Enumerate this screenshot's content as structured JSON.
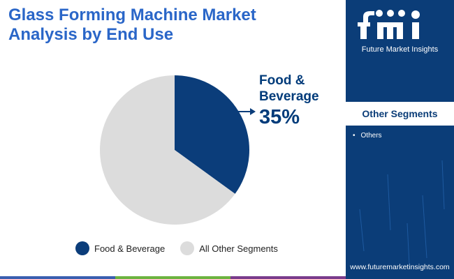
{
  "header": {
    "title_line1": "Glass Forming Machine Market",
    "title_line2": "Analysis by End Use"
  },
  "chart_data": {
    "type": "pie",
    "categories": [
      "Food & Beverage",
      "All Other Segments"
    ],
    "values": [
      35,
      65
    ],
    "colors": [
      "#0b3d7a",
      "#dcdcdc"
    ],
    "callout": {
      "label_line1": "Food &",
      "label_line2": "Beverage",
      "value": "35%"
    },
    "legend_placement": "bottom"
  },
  "legend": {
    "items": [
      {
        "label": "Food & Beverage",
        "color": "#0b3d7a"
      },
      {
        "label": "All Other Segments",
        "color": "#dcdcdc"
      }
    ]
  },
  "sidebar": {
    "logo_mark": "fmi",
    "logo_text": "Future Market Insights",
    "panel_title": "Other Segments",
    "segments": [
      "Others"
    ],
    "website": "www.futuremarketinsights.com"
  },
  "colors": {
    "title": "#2a66c8",
    "sidebar_bg": "#0b3d78",
    "accent_bar": [
      "#3a5fb0",
      "#6cb33f",
      "#7a3c8c",
      "#2a66c8"
    ]
  }
}
